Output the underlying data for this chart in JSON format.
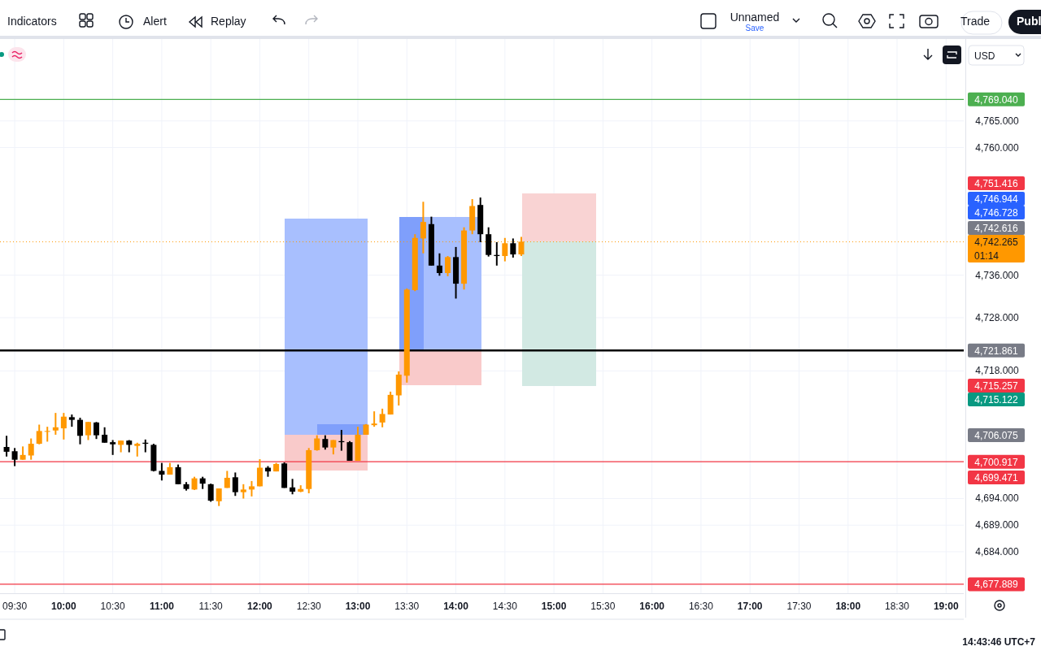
{
  "chart_data": {
    "type": "candlestick",
    "x": [
      9.417,
      9.5,
      9.583,
      9.667,
      9.75,
      9.833,
      9.917,
      10,
      10.083,
      10.167,
      10.25,
      10.333,
      10.417,
      10.5,
      10.583,
      10.667,
      10.75,
      10.833,
      10.917,
      11,
      11.083,
      11.167,
      11.25,
      11.333,
      11.417,
      11.5,
      11.583,
      11.667,
      11.75,
      11.833,
      11.917,
      12,
      12.083,
      12.167,
      12.25,
      12.333,
      12.417,
      12.5,
      12.583,
      12.667,
      12.75,
      12.833,
      12.917,
      13,
      13.083,
      13.167,
      13.25,
      13.333,
      13.417,
      13.5,
      13.583,
      13.667,
      13.75,
      13.833,
      13.917,
      14,
      14.083,
      14.167,
      14.25,
      14.333,
      14.417,
      14.5,
      14.583,
      14.667
    ],
    "ohlc": [
      [
        4703.7,
        4705.8,
        4701.9,
        4702.8
      ],
      [
        4702.9,
        4703.5,
        4700.1,
        4701.3
      ],
      [
        4701.3,
        4703.8,
        4701.3,
        4702.2
      ],
      [
        4702.1,
        4705.3,
        4701.3,
        4704.3
      ],
      [
        4704.3,
        4707.9,
        4704.2,
        4706.7
      ],
      [
        4706.6,
        4707.5,
        4704.7,
        4706.7
      ],
      [
        4706.8,
        4710.1,
        4706.0,
        4707.4
      ],
      [
        4707.2,
        4710.1,
        4705.1,
        4709.4
      ],
      [
        4709.3,
        4709.8,
        4707.5,
        4708.8
      ],
      [
        4708.8,
        4709.2,
        4704.2,
        4705.8
      ],
      [
        4705.9,
        4708.4,
        4705.0,
        4708.4
      ],
      [
        4708.3,
        4708.4,
        4705.2,
        4705.9
      ],
      [
        4706.0,
        4707.4,
        4704.5,
        4704.5
      ],
      [
        4704.6,
        4705.0,
        4702.2,
        4704.2
      ],
      [
        4704.1,
        4704.9,
        4702.7,
        4704.9
      ],
      [
        4704.9,
        4705.0,
        4702.7,
        4704.1
      ],
      [
        4703.9,
        4704.5,
        4701.9,
        4704.3
      ],
      [
        4704.5,
        4705.1,
        4702.7,
        4704.3
      ],
      [
        4704.1,
        4704.3,
        4699.1,
        4699.2
      ],
      [
        4699.2,
        4700.7,
        4697.4,
        4698.5
      ],
      [
        4698.5,
        4700.7,
        4698.5,
        4699.9
      ],
      [
        4699.9,
        4700.4,
        4696.7,
        4696.7
      ],
      [
        4696.7,
        4697.1,
        4695.5,
        4695.8
      ],
      [
        4695.7,
        4698.1,
        4695.6,
        4697.8
      ],
      [
        4697.8,
        4698.1,
        4695.8,
        4696.8
      ],
      [
        4696.7,
        4696.8,
        4693.4,
        4693.6
      ],
      [
        4693.5,
        4695.9,
        4692.6,
        4695.9
      ],
      [
        4696.0,
        4699.2,
        4696.0,
        4697.9
      ],
      [
        4698.0,
        4698.9,
        4694.5,
        4695.2
      ],
      [
        4695.2,
        4696.7,
        4694.0,
        4695.7
      ],
      [
        4695.7,
        4697.3,
        4694.4,
        4696.3
      ],
      [
        4696.3,
        4701.4,
        4696.3,
        4699.8
      ],
      [
        4699.8,
        4700.1,
        4698.1,
        4699.1
      ],
      [
        4699.1,
        4700.7,
        4699.1,
        4700.5
      ],
      [
        4700.6,
        4700.8,
        4696.0,
        4696.0
      ],
      [
        4696.1,
        4697.7,
        4694.8,
        4695.3
      ],
      [
        4695.3,
        4696.5,
        4695.2,
        4695.8
      ],
      [
        4695.8,
        4703.5,
        4695.0,
        4703.1
      ],
      [
        4703.1,
        4705.9,
        4703.0,
        4705.3
      ],
      [
        4705.2,
        4705.9,
        4703.2,
        4703.6
      ],
      [
        4703.6,
        4705.0,
        4702.3,
        4705.0
      ],
      [
        4704.8,
        4706.9,
        4703.0,
        4704.6
      ],
      [
        4704.6,
        4704.8,
        4701.1,
        4701.1
      ],
      [
        4701.1,
        4707.5,
        4701.1,
        4706.0
      ],
      [
        4706.0,
        4708.0,
        4706.0,
        4707.9
      ],
      [
        4707.8,
        4710.4,
        4707.5,
        4708.1
      ],
      [
        4708.3,
        4710.9,
        4707.4,
        4709.9
      ],
      [
        4709.8,
        4714.1,
        4709.8,
        4713.5
      ],
      [
        4713.4,
        4717.9,
        4711.5,
        4717.3
      ],
      [
        4717.1,
        4733.5,
        4715.8,
        4733.3
      ],
      [
        4733.2,
        4743.7,
        4733.0,
        4743.0
      ],
      [
        4742.9,
        4749.8,
        4740.1,
        4746.0
      ],
      [
        4745.6,
        4747.0,
        4737.8,
        4737.8
      ],
      [
        4737.8,
        4740.1,
        4735.9,
        4736.4
      ],
      [
        4736.4,
        4739.6,
        4735.8,
        4739.4
      ],
      [
        4739.4,
        4741.3,
        4731.6,
        4734.4
      ],
      [
        4734.4,
        4745.0,
        4733.3,
        4744.4
      ],
      [
        4744.4,
        4750.3,
        4743.7,
        4749.0
      ],
      [
        4749.2,
        4750.6,
        4742.2,
        4743.7
      ],
      [
        4743.7,
        4745.0,
        4739.5,
        4739.8
      ],
      [
        4739.8,
        4742.2,
        4737.8,
        4739.6
      ],
      [
        4739.6,
        4743.0,
        4738.6,
        4742.0
      ],
      [
        4742.0,
        4742.9,
        4739.3,
        4739.9
      ],
      [
        4739.9,
        4743.2,
        4739.6,
        4742.3
      ]
    ],
    "colors": [
      "#000000",
      "#000000",
      "#ff9800",
      "#ff9800",
      "#ff9800",
      "#ff9800",
      "#ff9800",
      "#ff9800",
      "#000000",
      "#000000",
      "#ff9800",
      "#000000",
      "#000000",
      "#000000",
      "#ff9800",
      "#000000",
      "#ff9800",
      "#000000",
      "#000000",
      "#000000",
      "#ff9800",
      "#000000",
      "#000000",
      "#ff9800",
      "#000000",
      "#000000",
      "#ff9800",
      "#ff9800",
      "#000000",
      "#ff9800",
      "#ff9800",
      "#ff9800",
      "#000000",
      "#ff9800",
      "#000000",
      "#000000",
      "#ff9800",
      "#ff9800",
      "#ff9800",
      "#000000",
      "#ff9800",
      "#000000",
      "#000000",
      "#ff9800",
      "#ff9800",
      "#ff9800",
      "#ff9800",
      "#ff9800",
      "#ff9800",
      "#ff9800",
      "#ff9800",
      "#ff9800",
      "#000000",
      "#000000",
      "#ff9800",
      "#000000",
      "#ff9800",
      "#ff9800",
      "#000000",
      "#000000",
      "#000000",
      "#ff9800",
      "#000000",
      "#ff9800"
    ],
    "xlim": [
      9.35,
      19.18
    ],
    "xticks": [
      {
        "value": 9.5,
        "label": "09:30"
      },
      {
        "value": 10,
        "label": "10:00"
      },
      {
        "value": 10.5,
        "label": "10:30"
      },
      {
        "value": 11,
        "label": "11:00"
      },
      {
        "value": 11.5,
        "label": "11:30"
      },
      {
        "value": 12,
        "label": "12:00"
      },
      {
        "value": 12.5,
        "label": "12:30"
      },
      {
        "value": 13,
        "label": "13:00"
      },
      {
        "value": 13.5,
        "label": "13:30"
      },
      {
        "value": 14,
        "label": "14:00"
      },
      {
        "value": 14.5,
        "label": "14:30"
      },
      {
        "value": 15,
        "label": "15:00"
      },
      {
        "value": 15.5,
        "label": "15:30"
      },
      {
        "value": 16,
        "label": "16:00"
      },
      {
        "value": 16.5,
        "label": "16:30"
      },
      {
        "value": 17,
        "label": "17:00"
      },
      {
        "value": 17.5,
        "label": "17:30"
      },
      {
        "value": 18,
        "label": "18:00"
      },
      {
        "value": 18.5,
        "label": "18:30"
      },
      {
        "value": 19,
        "label": "19:00"
      }
    ],
    "ylim": [
      4676.2,
      4780.4
    ],
    "yticks": [
      {
        "value": 4765,
        "label": "4,765.000"
      },
      {
        "value": 4760,
        "label": "4,760.000"
      },
      {
        "value": 4736,
        "label": "4,736.000"
      },
      {
        "value": 4728,
        "label": "4,728.000"
      },
      {
        "value": 4718,
        "label": "4,718.000"
      },
      {
        "value": 4694,
        "label": "4,694.000"
      },
      {
        "value": 4689,
        "label": "4,689.000"
      },
      {
        "value": 4684,
        "label": "4,684.000"
      }
    ],
    "grid": true,
    "ref_lines": [
      {
        "axis": "y",
        "value": 4769.04,
        "label": "4,769.040",
        "color": "#4caf50",
        "line_style": "solid"
      },
      {
        "axis": "y",
        "value": 4742.265,
        "label": "4,742.265\n01:14",
        "color": "#ff9800",
        "line_style": "dotted"
      },
      {
        "axis": "y",
        "value": 4721.861,
        "label": "4,721.861",
        "color": "#000000",
        "line_style": "solid"
      },
      {
        "axis": "y",
        "value": 4700.917,
        "label": "4,700.917",
        "color": "#f23645",
        "line_style": "solid"
      },
      {
        "axis": "y",
        "value": 4677.889,
        "label": "4,677.889",
        "color": "#f23645",
        "line_style": "solid"
      }
    ],
    "annotations": [
      "Indicators",
      "Alert",
      "Replay",
      "Unnamed",
      "Save",
      "Trade",
      "Publ",
      "USD",
      "14:43:46 UTC+7",
      "4,751.416",
      "4,746.944",
      "4,746.728",
      "4,742.616",
      "4,715.257",
      "4,715.122",
      "4,706.075",
      "4,699.471"
    ]
  }
}
